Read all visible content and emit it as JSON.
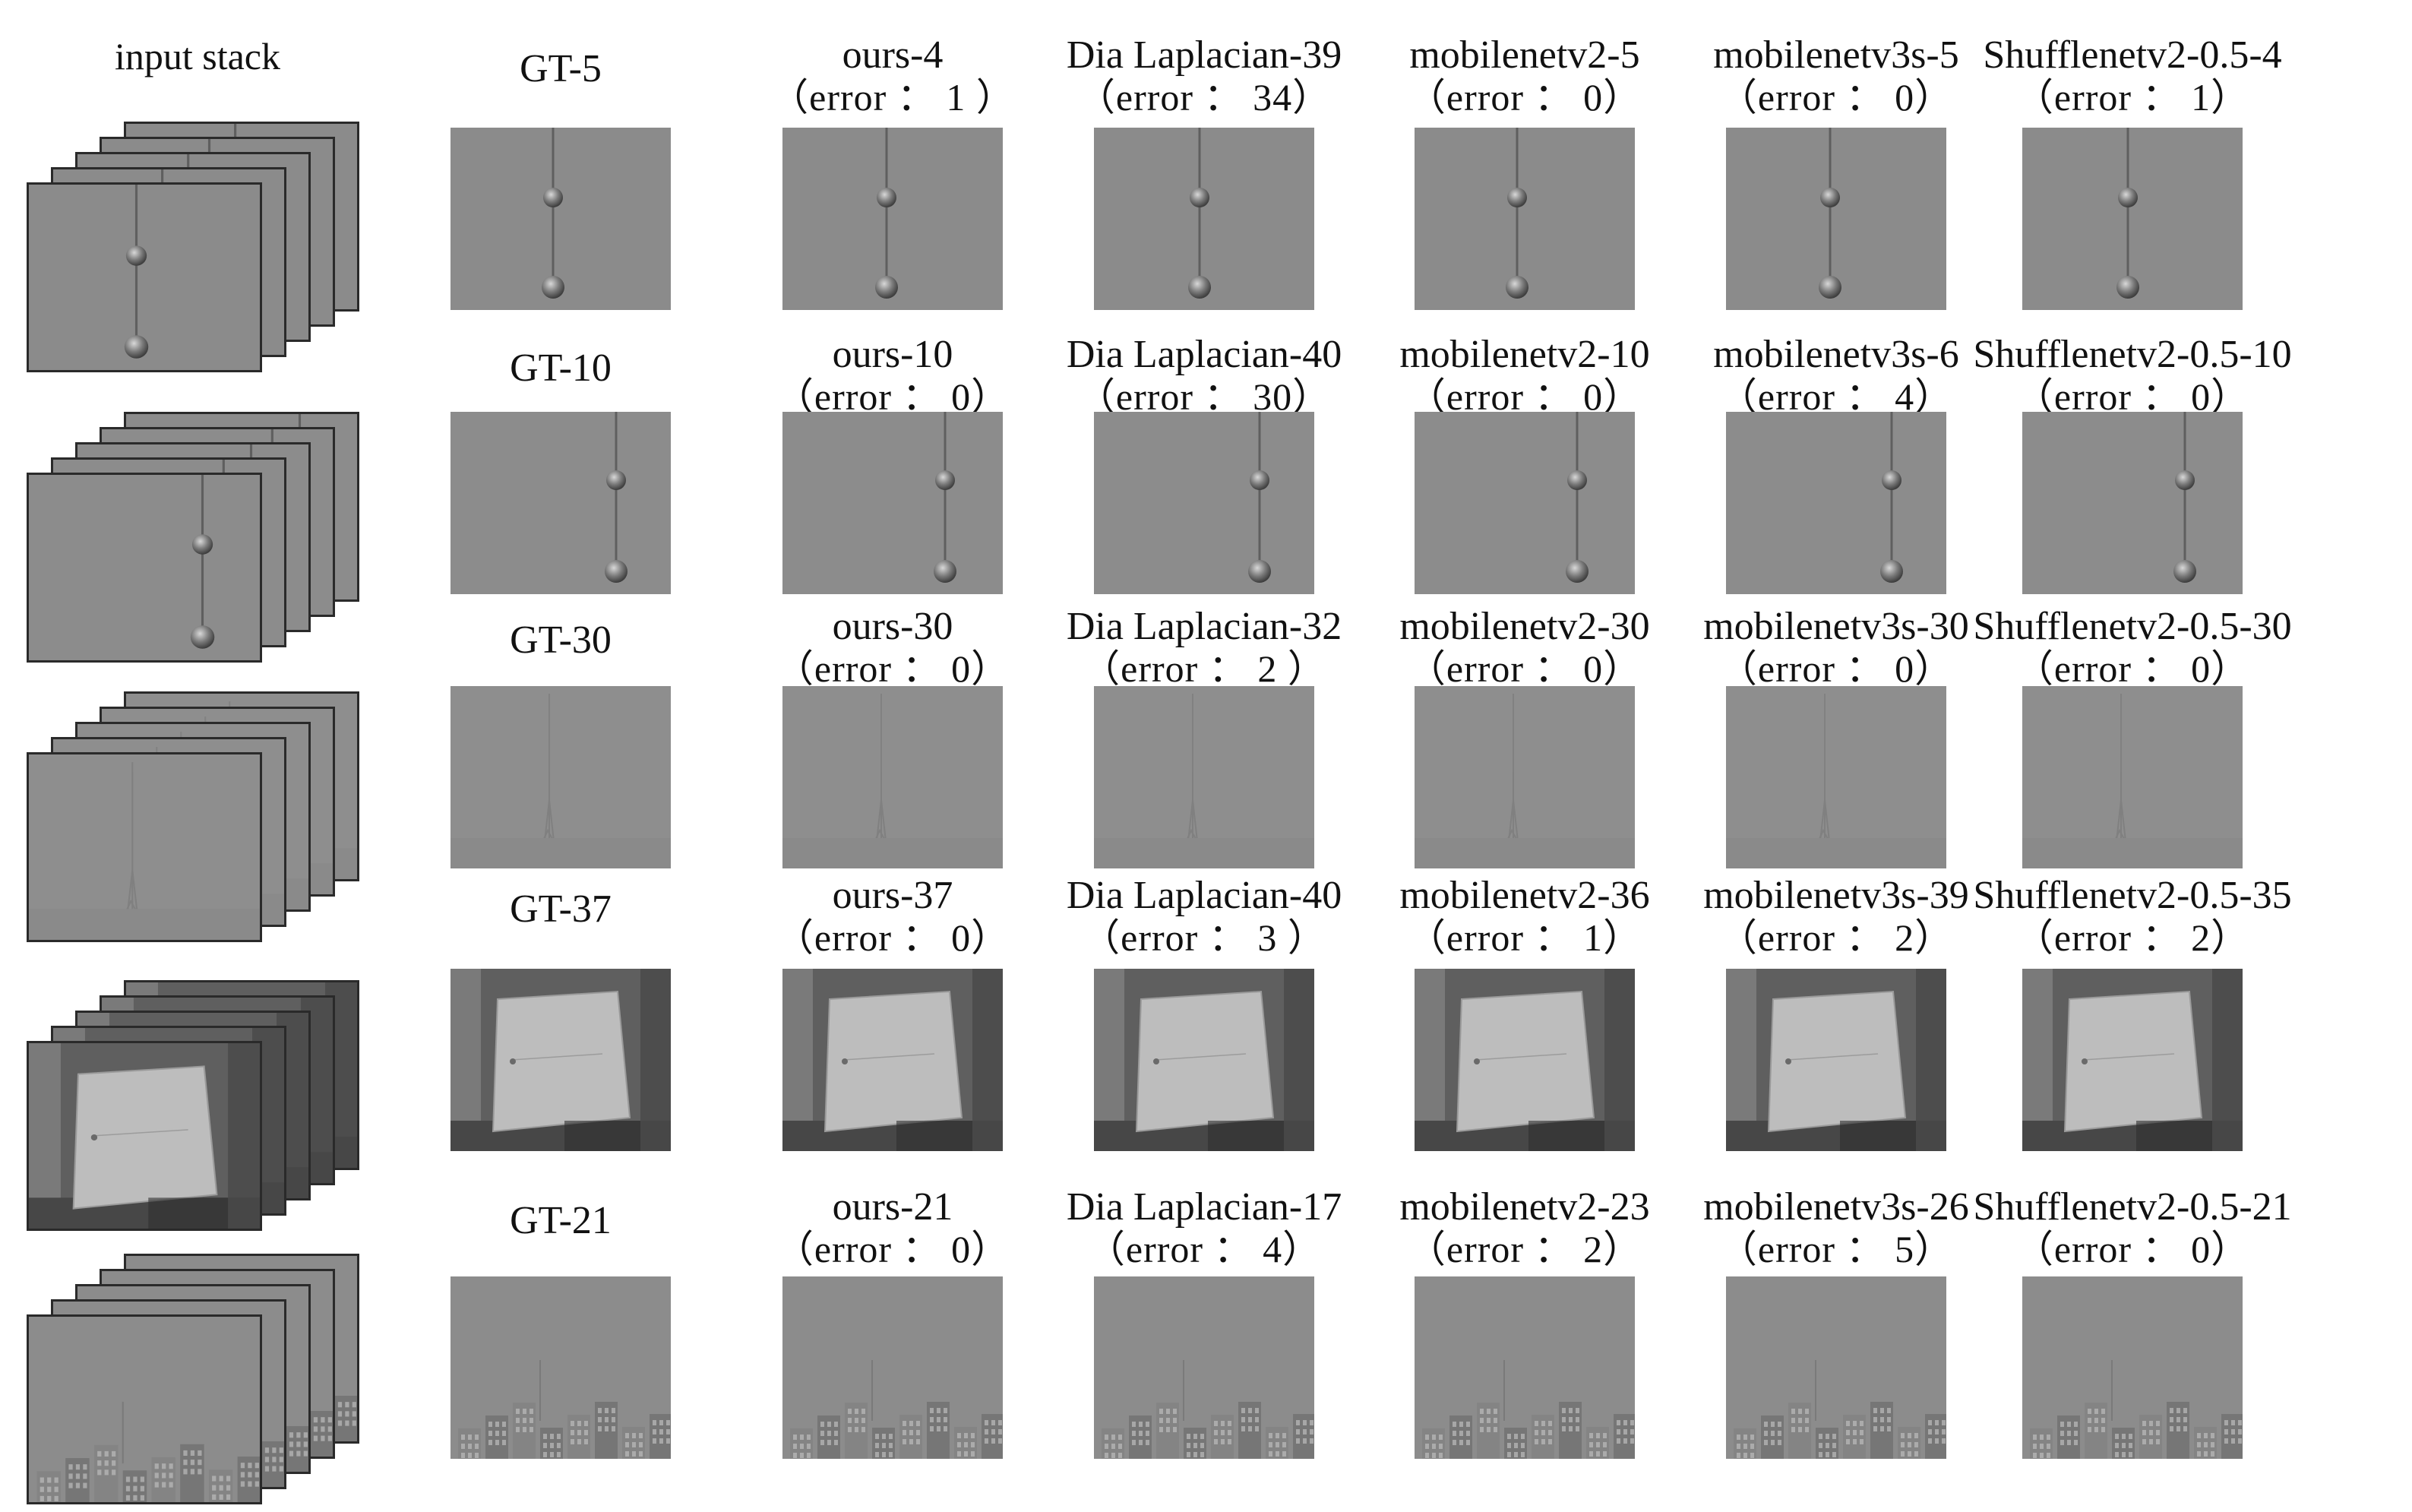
{
  "input_header": "input stack",
  "columns": [
    "gt",
    "ours",
    "dia-laplacian",
    "mobilenetv2",
    "mobilenetv3s",
    "shufflenetv2"
  ],
  "rows": [
    {
      "scene": "needle",
      "cells": [
        {
          "title": "GT-5",
          "error": ""
        },
        {
          "title": "ours-4",
          "error": "（error ： 1 ）"
        },
        {
          "title": "Dia Laplacian-39",
          "error": "（error ： 34）"
        },
        {
          "title": "mobilenetv2-5",
          "error": "（error ： 0）"
        },
        {
          "title": "mobilenetv3s-5",
          "error": "（error ： 0）"
        },
        {
          "title": "Shufflenetv2-0.5-4",
          "error": "（error ： 1）"
        }
      ]
    },
    {
      "scene": "needle-right",
      "cells": [
        {
          "title": "GT-10",
          "error": ""
        },
        {
          "title": "ours-10",
          "error": "（error ： 0）"
        },
        {
          "title": "Dia Laplacian-40",
          "error": "（error ： 30）"
        },
        {
          "title": "mobilenetv2-10",
          "error": "（error ： 0）"
        },
        {
          "title": "mobilenetv3s-6",
          "error": "（error ： 4）"
        },
        {
          "title": "Shufflenetv2-0.5-10",
          "error": "（error ： 0）"
        }
      ]
    },
    {
      "scene": "tower",
      "cells": [
        {
          "title": "GT-30",
          "error": ""
        },
        {
          "title": "ours-30",
          "error": "（error ： 0）"
        },
        {
          "title": "Dia Laplacian-32",
          "error": "（error ： 2 ）"
        },
        {
          "title": "mobilenetv2-30",
          "error": "（error ： 0）"
        },
        {
          "title": "mobilenetv3s-30",
          "error": "（error ： 0）"
        },
        {
          "title": "Shufflenetv2-0.5-30",
          "error": "（error ： 0）"
        }
      ]
    },
    {
      "scene": "panel",
      "cells": [
        {
          "title": "GT-37",
          "error": ""
        },
        {
          "title": "ours-37",
          "error": "（error ： 0）"
        },
        {
          "title": "Dia Laplacian-40",
          "error": "（error ： 3 ）"
        },
        {
          "title": "mobilenetv2-36",
          "error": "（error ： 1）"
        },
        {
          "title": "mobilenetv3s-39",
          "error": "（error ： 2）"
        },
        {
          "title": "Shufflenetv2-0.5-35",
          "error": "（error ： 2）"
        }
      ]
    },
    {
      "scene": "city",
      "cells": [
        {
          "title": "GT-21",
          "error": ""
        },
        {
          "title": "ours-21",
          "error": "（error ： 0）"
        },
        {
          "title": "Dia Laplacian-17",
          "error": "（error ： 4）"
        },
        {
          "title": "mobilenetv2-23",
          "error": "（error ： 2）"
        },
        {
          "title": "mobilenetv3s-26",
          "error": "（error ： 5）"
        },
        {
          "title": "Shufflenetv2-0.5-21",
          "error": "（error ： 0）"
        }
      ]
    }
  ]
}
